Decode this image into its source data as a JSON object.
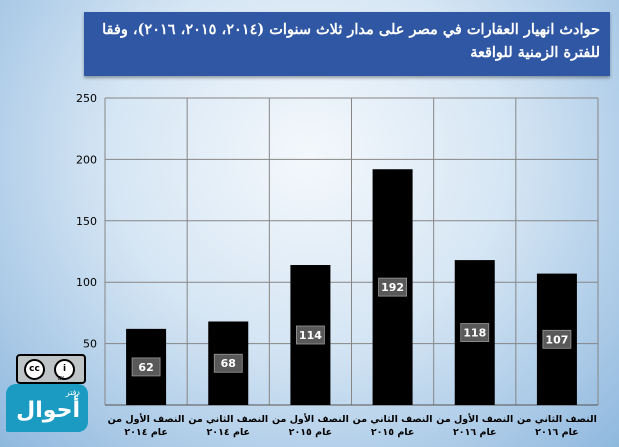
{
  "chart_data": {
    "type": "bar",
    "title": "حوادث انهيار العقارات في مصر على مدار ثلاث سنوات (٢٠١٤، ٢٠١٥، ٢٠١٦)، وفقا للفترة الزمنية للواقعة",
    "categories": [
      [
        "النصف الأول من",
        "عام ٢٠١٤"
      ],
      [
        "النصف الثاني من",
        "عام ٢٠١٤"
      ],
      [
        "النصف الأول من",
        "عام ٢٠١٥"
      ],
      [
        "النصف الثاني من",
        "عام ٢٠١٥"
      ],
      [
        "النصف الأول من",
        "عام ٢٠١٦"
      ],
      [
        "النصف الثاني من",
        "عام ٢٠١٦"
      ]
    ],
    "values": [
      62,
      68,
      114,
      192,
      118,
      107
    ],
    "ylim": [
      0,
      250
    ],
    "yticks": [
      50,
      100,
      150,
      200,
      250
    ],
    "grid": true,
    "colors": {
      "bar": "#000000",
      "label_box": "#595959",
      "label_text": "#ffffff",
      "grid": "#868686"
    }
  },
  "watermark": {
    "cc_label": "cc",
    "by_label": "BY",
    "logo_small": "دفتر",
    "logo_big": "أحوال"
  }
}
